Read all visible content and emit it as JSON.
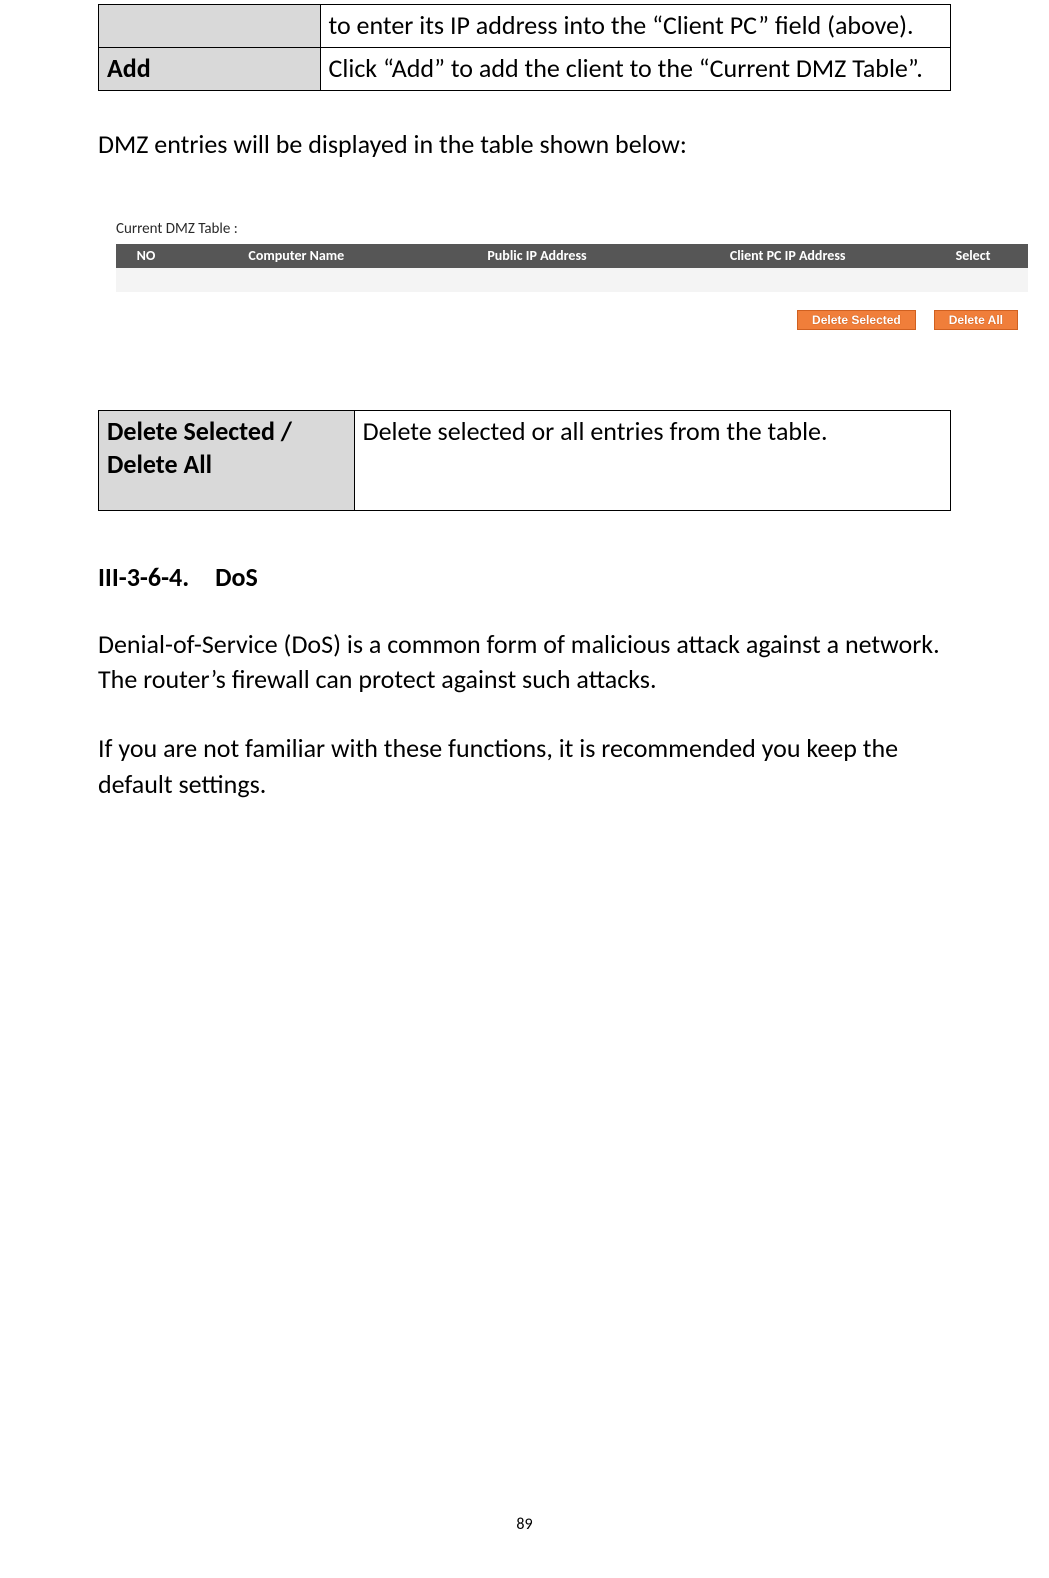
{
  "table1": {
    "row0_label": "",
    "row0_desc": "to enter its IP address into the “Client PC” field (above).",
    "row1_label": "Add",
    "row1_desc": "Click “Add” to add the client to the “Current DMZ Table”."
  },
  "para_intro": "DMZ entries will be displayed in the table shown below:",
  "dmz": {
    "title": "Current DMZ Table :",
    "columns": {
      "no": "NO",
      "name": "Computer Name",
      "pub": "Public  IP Address",
      "cli": "Client PC  IP Address",
      "sel": "Select"
    },
    "btn_del_sel": "Delete Selected",
    "btn_del_all": "Delete All",
    "header_bg": "#565656",
    "header_fg": "#ffffff",
    "btn_bg": "#f07e3a",
    "btn_border": "#d06020",
    "btn_fg": "#ffffff"
  },
  "table2": {
    "label": "Delete Selected / Delete All",
    "desc": "Delete selected or all entries from the table."
  },
  "heading": "III-3-6-4. DoS",
  "body1": "Denial-of-Service (DoS) is a common form of malicious attack against a network. The router’s firewall can protect against such attacks.",
  "body2": "If you are not familiar with these functions, it is recommended you keep the default settings.",
  "page_number": "89"
}
